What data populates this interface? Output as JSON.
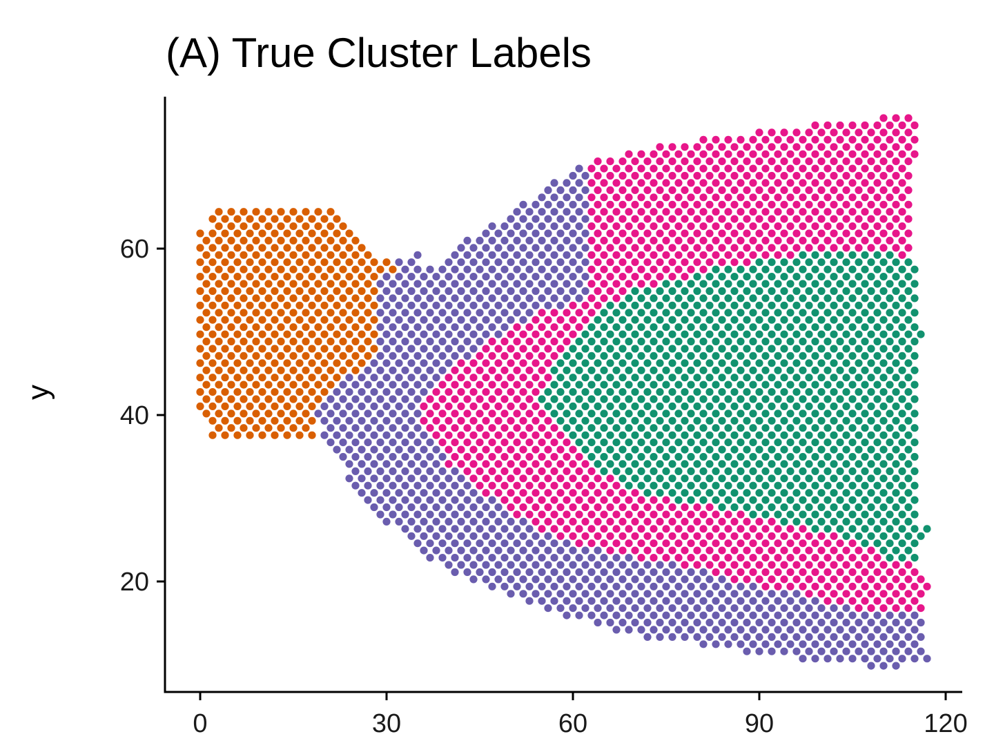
{
  "chart_data": {
    "type": "scatter",
    "title": "(A) True Cluster Labels",
    "xlabel": "",
    "ylabel": "y",
    "xlim": [
      -5,
      122
    ],
    "ylim": [
      7,
      78
    ],
    "x_ticks": [
      0,
      30,
      60,
      90,
      120
    ],
    "y_ticks": [
      20,
      40,
      60
    ],
    "x_tick_labels": [
      "0",
      "30",
      "60",
      "90",
      "120"
    ],
    "y_tick_labels": [
      "20",
      "40",
      "60"
    ],
    "grid": false,
    "legend": "none",
    "point_spacing": {
      "dx": 1.0,
      "dy": 1.732
    },
    "colors": [
      "#D95F02",
      "#6A5DAE",
      "#E7168A",
      "#11926F"
    ],
    "clusters": [
      {
        "id": 1,
        "color": "#D95F02",
        "x_range": [
          0,
          32
        ],
        "region": "left block, y 37.5–64.5, right edge slanting in below y≈57"
      },
      {
        "id": 2,
        "color": "#6A5DAE",
        "x_range": [
          18,
          118
        ],
        "region": "outer band surrounding clusters 3 and 4, widening to the right (y 9.5–76)"
      },
      {
        "id": 3,
        "color": "#E7168A",
        "x_range": [
          36,
          117
        ],
        "region": "chevron band between the green core and the lower purple band"
      },
      {
        "id": 4,
        "color": "#11926F",
        "x_range": [
          55,
          117
        ],
        "region": "right core, y ≈ 22–59.5, left tip near x≈55, y≈42"
      }
    ]
  }
}
